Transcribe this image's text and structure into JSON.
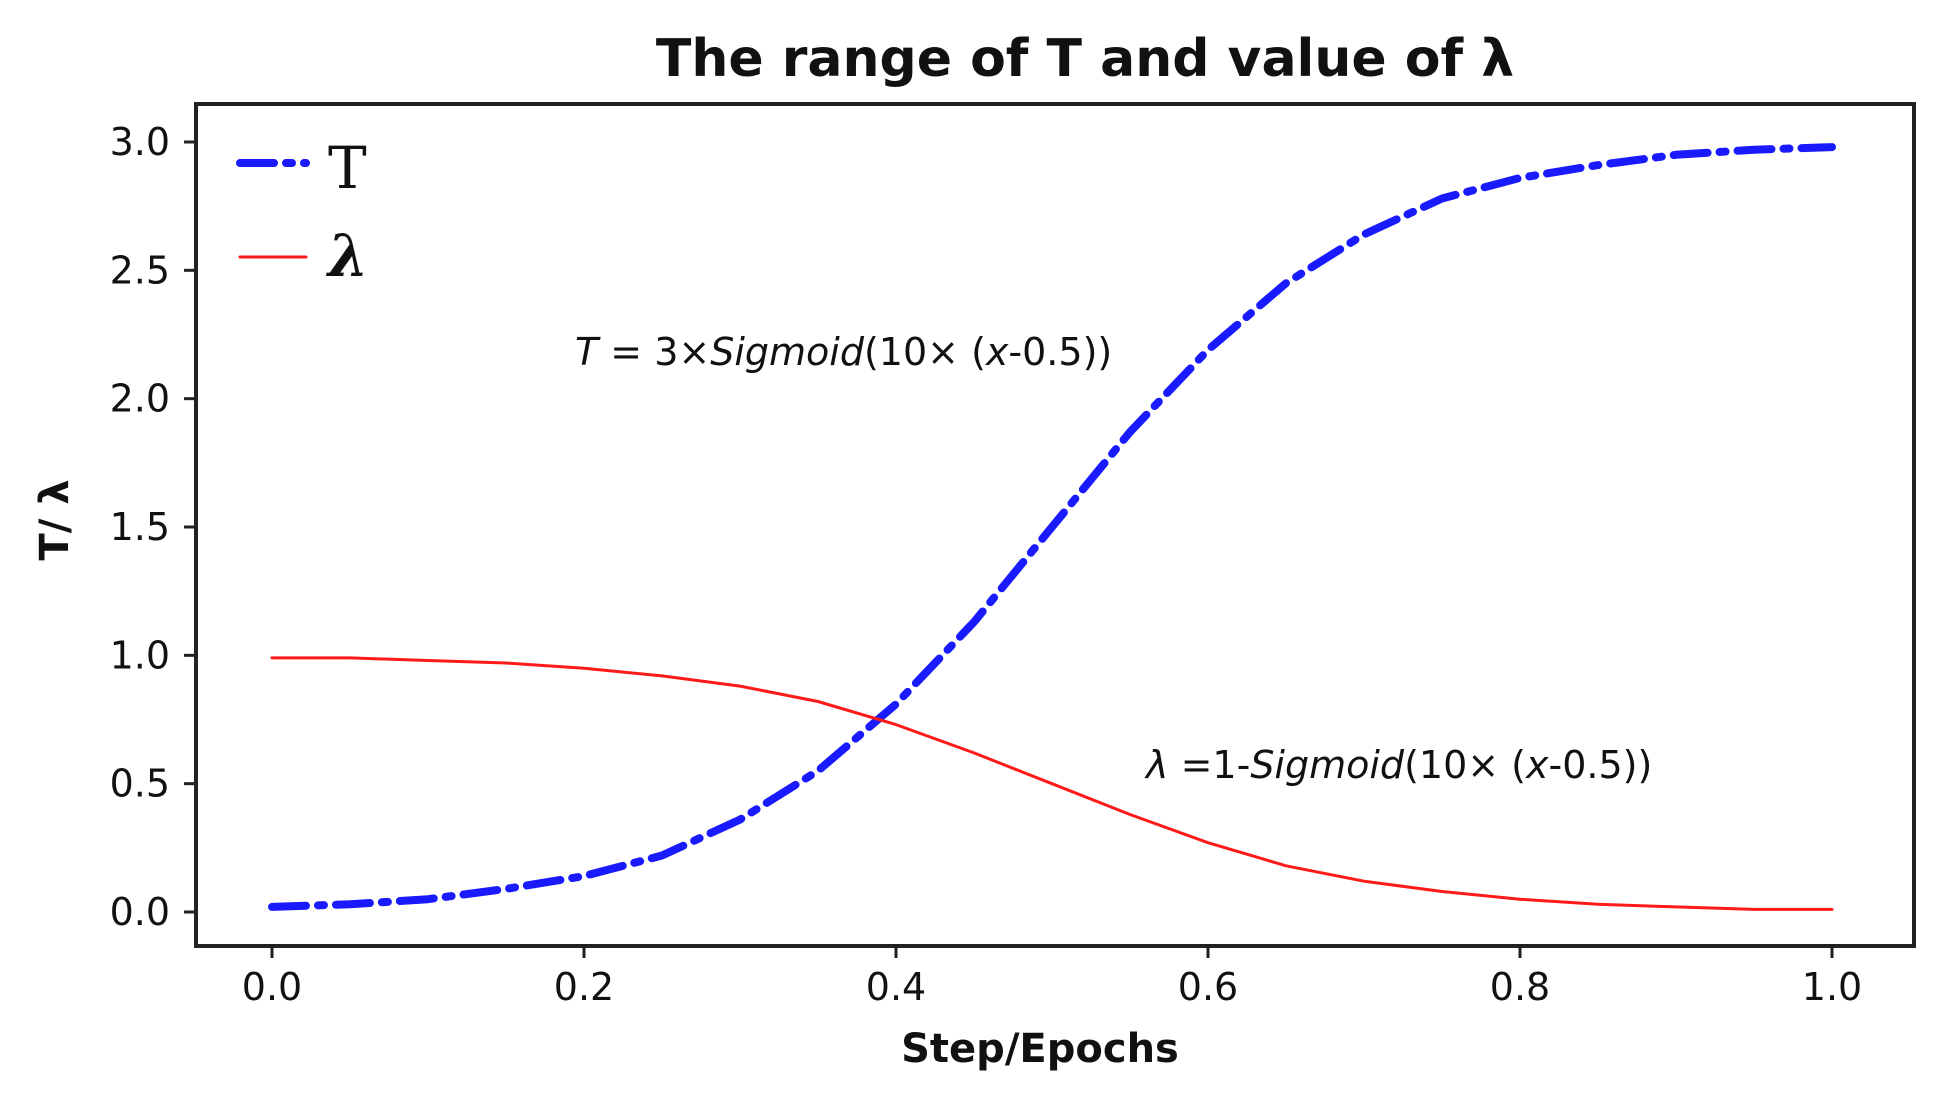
{
  "chart_data": {
    "type": "line",
    "title": "The range of T and value of λ",
    "xlabel": "Step/Epochs",
    "ylabel": "T/ λ",
    "xlim": [
      0.0,
      1.0
    ],
    "ylim": [
      0.0,
      3.0
    ],
    "x_ticks": [
      "0.0",
      "0.2",
      "0.4",
      "0.6",
      "0.8",
      "1.0"
    ],
    "y_ticks": [
      "0.0",
      "0.5",
      "1.0",
      "1.5",
      "2.0",
      "2.5",
      "3.0"
    ],
    "grid": false,
    "legend_position": "top-left",
    "x": [
      0.0,
      0.05,
      0.1,
      0.15,
      0.2,
      0.25,
      0.3,
      0.35,
      0.4,
      0.45,
      0.5,
      0.55,
      0.6,
      0.65,
      0.7,
      0.75,
      0.8,
      0.85,
      0.9,
      0.95,
      1.0
    ],
    "series": [
      {
        "name": "T",
        "color": "#1a1aff",
        "style": "dash-dot",
        "values": [
          0.02,
          0.03,
          0.05,
          0.09,
          0.14,
          0.22,
          0.36,
          0.55,
          0.81,
          1.13,
          1.5,
          1.87,
          2.19,
          2.45,
          2.64,
          2.78,
          2.86,
          2.91,
          2.95,
          2.97,
          2.98
        ]
      },
      {
        "name": "λ",
        "color": "#ff1a1a",
        "style": "solid",
        "values": [
          0.99,
          0.99,
          0.98,
          0.97,
          0.95,
          0.92,
          0.88,
          0.82,
          0.73,
          0.62,
          0.5,
          0.38,
          0.27,
          0.18,
          0.12,
          0.08,
          0.05,
          0.03,
          0.02,
          0.01,
          0.01
        ]
      }
    ],
    "annotations": [
      {
        "text_parts": [
          {
            "t": "T",
            "italic": true
          },
          {
            "t": " = 3×"
          },
          {
            "t": "Sigmoid",
            "italic": true
          },
          {
            "t": "(10× ("
          },
          {
            "t": "x",
            "italic": true
          },
          {
            "t": "-0.5))"
          }
        ]
      },
      {
        "text_parts": [
          {
            "t": "λ",
            "italic": true
          },
          {
            "t": "  =1-"
          },
          {
            "t": "Sigmoid",
            "italic": true
          },
          {
            "t": "(10× ("
          },
          {
            "t": "x",
            "italic": true
          },
          {
            "t": "-0.5))"
          }
        ]
      }
    ]
  }
}
